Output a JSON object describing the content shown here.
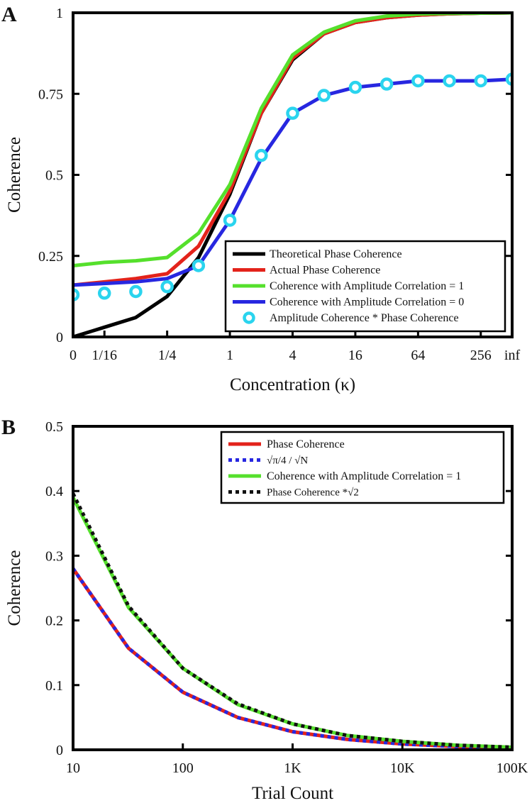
{
  "chart_data": [
    {
      "panel_label": "A",
      "type": "line",
      "xlabel": "Concentration (κ)",
      "ylabel": "Coherence",
      "ylim": [
        0,
        1
      ],
      "x_scale": "categorical ordinal (0, 1/16 … 256, inf)",
      "x_ticks": [
        {
          "pos": 0,
          "label": "0"
        },
        {
          "pos": 1,
          "label": "1/16"
        },
        {
          "pos": 3,
          "label": "1/4"
        },
        {
          "pos": 5,
          "label": "1"
        },
        {
          "pos": 7,
          "label": "4"
        },
        {
          "pos": 9,
          "label": "16"
        },
        {
          "pos": 11,
          "label": "64"
        },
        {
          "pos": 13,
          "label": "256"
        },
        {
          "pos": 14,
          "label": "inf"
        }
      ],
      "y_ticks": [
        {
          "value": 0,
          "label": "0"
        },
        {
          "value": 0.25,
          "label": "0.25"
        },
        {
          "value": 0.5,
          "label": "0.5"
        },
        {
          "value": 0.75,
          "label": "0.75"
        },
        {
          "value": 1,
          "label": "1"
        }
      ],
      "x_positions": [
        0,
        1,
        2,
        3,
        4,
        5,
        6,
        7,
        8,
        9,
        10,
        11,
        12,
        13,
        14
      ],
      "series": [
        {
          "name": "Theoretical Phase Coherence",
          "color": "#000000",
          "style": "solid",
          "values": [
            0.0,
            0.03,
            0.06,
            0.125,
            0.245,
            0.44,
            0.69,
            0.855,
            0.935,
            0.97,
            0.985,
            0.993,
            0.997,
            0.999,
            1.0
          ]
        },
        {
          "name": "Actual Phase Coherence",
          "color": "#e3231b",
          "style": "solid",
          "values": [
            0.16,
            0.17,
            0.18,
            0.195,
            0.28,
            0.45,
            0.69,
            0.86,
            0.935,
            0.97,
            0.985,
            0.993,
            0.997,
            0.999,
            1.0
          ]
        },
        {
          "name": "Coherence with Amplitude Correlation = 1",
          "color": "#55e02c",
          "style": "solid",
          "values": [
            0.22,
            0.23,
            0.235,
            0.245,
            0.32,
            0.47,
            0.705,
            0.87,
            0.94,
            0.975,
            0.99,
            0.996,
            0.998,
            0.999,
            1.0
          ]
        },
        {
          "name": "Coherence with Amplitude Correlation = 0",
          "color": "#2727e0",
          "style": "solid",
          "values": [
            0.16,
            0.165,
            0.17,
            0.18,
            0.22,
            0.36,
            0.55,
            0.69,
            0.745,
            0.77,
            0.78,
            0.79,
            0.79,
            0.79,
            0.795
          ]
        },
        {
          "name": "Amplitude Coherence * Phase Coherence",
          "color": "#2ad4ee",
          "style": "markers",
          "values": [
            0.13,
            0.135,
            0.14,
            0.155,
            0.22,
            0.36,
            0.56,
            0.69,
            0.745,
            0.77,
            0.78,
            0.79,
            0.79,
            0.79,
            0.795
          ]
        }
      ],
      "legend": {
        "placement": "bottom-right"
      }
    },
    {
      "panel_label": "B",
      "type": "line",
      "xlabel": "Trial Count",
      "ylabel": "Coherence",
      "ylim": [
        0,
        0.5
      ],
      "x_scale": "log10",
      "xlim": [
        10,
        100000
      ],
      "x_ticks": [
        {
          "value": 10,
          "label": "10"
        },
        {
          "value": 100,
          "label": "100"
        },
        {
          "value": 1000,
          "label": "1K"
        },
        {
          "value": 10000,
          "label": "10K"
        },
        {
          "value": 100000,
          "label": "100K"
        }
      ],
      "y_ticks": [
        {
          "value": 0,
          "label": "0"
        },
        {
          "value": 0.1,
          "label": "0.1"
        },
        {
          "value": 0.2,
          "label": "0.2"
        },
        {
          "value": 0.3,
          "label": "0.3"
        },
        {
          "value": 0.4,
          "label": "0.4"
        },
        {
          "value": 0.5,
          "label": "0.5"
        }
      ],
      "x": [
        10,
        32,
        100,
        316,
        1000,
        3162,
        10000,
        31623,
        100000
      ],
      "series": [
        {
          "name": "Phase Coherence",
          "color": "#e3231b",
          "style": "solid",
          "values": [
            0.28,
            0.157,
            0.089,
            0.05,
            0.028,
            0.016,
            0.009,
            0.005,
            0.003
          ]
        },
        {
          "name_prefix": "√",
          "name_mid": "π/4 / √",
          "name_end": "N",
          "name": "√π/4 / √N",
          "color": "#2727e0",
          "style": "dotted",
          "values": [
            0.28,
            0.157,
            0.089,
            0.05,
            0.028,
            0.016,
            0.009,
            0.005,
            0.003
          ]
        },
        {
          "name": "Coherence with Amplitude Correlation = 1",
          "color": "#55e02c",
          "style": "solid",
          "values": [
            0.39,
            0.22,
            0.126,
            0.07,
            0.04,
            0.022,
            0.013,
            0.007,
            0.004
          ]
        },
        {
          "name_prefix": "Phase Coherence *",
          "name_end": "2",
          "name": "Phase Coherence *√2",
          "color": "#111111",
          "style": "dotted",
          "values": [
            0.396,
            0.222,
            0.126,
            0.071,
            0.04,
            0.022,
            0.013,
            0.007,
            0.004
          ]
        }
      ],
      "legend": {
        "placement": "top-right"
      }
    }
  ]
}
